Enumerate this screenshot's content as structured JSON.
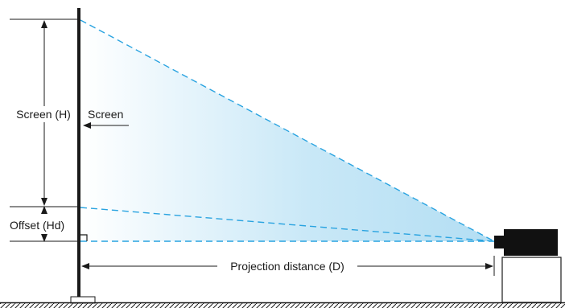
{
  "labels": {
    "screen_height": "Screen (H)",
    "screen": "Screen",
    "offset": "Offset (Hd)",
    "projection_distance": "Projection distance (D)"
  },
  "colors": {
    "beam_edge": "#29a3e0",
    "beam_fill": "#b9e0f4",
    "line": "#1a1a1a",
    "projector": "#111111"
  }
}
